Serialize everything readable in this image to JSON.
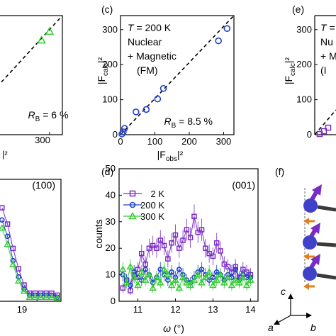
{
  "panel_labels": {
    "c": "(c)",
    "d": "(d)",
    "e": "(e)",
    "f": "(f)"
  },
  "colors": {
    "green": "#33cc33",
    "blue": "#1f3fcc",
    "purple": "#7a2cc4",
    "sphere_blue": "#4040c8",
    "spin_orange": "#e08020",
    "dashed_fit": "#000000"
  },
  "chart_data": [
    {
      "id": "left-partial-top",
      "type": "scatter",
      "xlabel_fragment": "|²",
      "xticks": [
        "300"
      ],
      "annotation": "R_B = 6 %",
      "points": [
        {
          "x": 300,
          "y": 295
        },
        {
          "x": 275,
          "y": 270
        }
      ],
      "marker": "triangle",
      "color": "#33cc33"
    },
    {
      "id": "panel-c",
      "type": "scatter",
      "panel": "(c)",
      "title_lines": [
        "T = 200 K",
        "Nuclear",
        "+ Magnetic",
        "(FM)"
      ],
      "xlabel": "|F_obs|²",
      "ylabel": "|F_calc|²",
      "xlim": [
        0,
        330
      ],
      "ylim": [
        0,
        340
      ],
      "xticks": [
        "0",
        "100",
        "200",
        "300"
      ],
      "yticks": [
        "0",
        "100",
        "200",
        "300"
      ],
      "annotation": "R_B = 8.5 %",
      "marker": "circle",
      "color": "#1f3fcc",
      "points": [
        {
          "x": 4,
          "y": 2
        },
        {
          "x": 8,
          "y": 8
        },
        {
          "x": 12,
          "y": 18
        },
        {
          "x": 45,
          "y": 65
        },
        {
          "x": 75,
          "y": 72
        },
        {
          "x": 108,
          "y": 102
        },
        {
          "x": 125,
          "y": 132
        },
        {
          "x": 285,
          "y": 268
        },
        {
          "x": 310,
          "y": 303
        }
      ],
      "fit_line": [
        [
          0,
          0
        ],
        [
          330,
          340
        ]
      ]
    },
    {
      "id": "panel-e-partial",
      "type": "scatter",
      "panel": "(e)",
      "ylabel": "|F_calc|²",
      "ylim": [
        0,
        340
      ],
      "yticks": [
        "0",
        "100",
        "200",
        "300"
      ],
      "title_fragment": "T =",
      "text_fragments": [
        "Nu",
        "+ M",
        "(I"
      ],
      "marker": "square",
      "color": "#7a2cc4",
      "points": [
        {
          "x": 2,
          "y": 2
        },
        {
          "x": 6,
          "y": 10
        },
        {
          "x": 10,
          "y": 20
        }
      ]
    },
    {
      "id": "left-partial-bottom",
      "type": "line",
      "annotation": "(100)",
      "xticks": [
        "19"
      ],
      "series": [
        {
          "color": "#7a2cc4",
          "marker": "square",
          "values": [
            [
              18.05,
              23
            ],
            [
              18.2,
              19
            ],
            [
              18.35,
              13
            ],
            [
              18.5,
              8
            ],
            [
              18.65,
              4
            ],
            [
              18.8,
              2
            ],
            [
              18.95,
              2
            ],
            [
              19.1,
              2
            ],
            [
              19.25,
              2
            ],
            [
              19.4,
              2
            ],
            [
              19.55,
              1.5
            ]
          ]
        },
        {
          "color": "#1f3fcc",
          "marker": "circle",
          "values": [
            [
              18.05,
              20
            ],
            [
              18.2,
              16
            ],
            [
              18.35,
              10
            ],
            [
              18.5,
              6
            ],
            [
              18.65,
              3
            ],
            [
              18.8,
              1.5
            ],
            [
              18.95,
              1.5
            ],
            [
              19.1,
              1.5
            ],
            [
              19.25,
              1.5
            ],
            [
              19.4,
              1.5
            ],
            [
              19.55,
              1
            ]
          ]
        },
        {
          "color": "#33cc33",
          "marker": "triangle",
          "values": [
            [
              18.05,
              18
            ],
            [
              18.2,
              14
            ],
            [
              18.35,
              9
            ],
            [
              18.5,
              5
            ],
            [
              18.65,
              2.5
            ],
            [
              18.8,
              1
            ],
            [
              18.95,
              1
            ],
            [
              19.1,
              1
            ],
            [
              19.25,
              1
            ],
            [
              19.4,
              1
            ],
            [
              19.55,
              0.8
            ]
          ]
        }
      ],
      "ylim": [
        0,
        30
      ],
      "xlim": [
        17.9,
        19.65
      ]
    },
    {
      "id": "panel-d",
      "type": "line",
      "panel": "(d)",
      "annotation": "(001)",
      "xlabel": "ω (°)",
      "ylabel": "counts",
      "xlim": [
        10.5,
        14.2
      ],
      "ylim": [
        0,
        50
      ],
      "xticks": [
        "11",
        "12",
        "13",
        "14"
      ],
      "yticks": [
        "0",
        "10",
        "20",
        "30",
        "40",
        "50"
      ],
      "series": [
        {
          "name": "2 K",
          "color": "#7a2cc4",
          "marker": "square",
          "x": [
            10.6,
            10.7,
            10.8,
            10.9,
            11.0,
            11.1,
            11.2,
            11.3,
            11.4,
            11.5,
            11.6,
            11.7,
            11.8,
            11.9,
            12.0,
            12.1,
            12.2,
            12.3,
            12.4,
            12.5,
            12.6,
            12.7,
            12.8,
            12.9,
            13.0,
            13.1,
            13.2,
            13.3,
            13.4,
            13.5,
            13.6,
            13.7,
            13.8,
            13.9,
            14.0
          ],
          "y": [
            5,
            8,
            4,
            10,
            12,
            18,
            14,
            20,
            21,
            20,
            23,
            21,
            16,
            22,
            25,
            20,
            23,
            27,
            24,
            32,
            26,
            27,
            20,
            18,
            17,
            22,
            19,
            14,
            13,
            11,
            13,
            9,
            12,
            11,
            10
          ]
        },
        {
          "name": "200 K",
          "color": "#1f3fcc",
          "marker": "circle",
          "x": [
            10.6,
            10.7,
            10.8,
            10.9,
            11.0,
            11.1,
            11.2,
            11.3,
            11.4,
            11.5,
            11.6,
            11.7,
            11.8,
            11.9,
            12.0,
            12.1,
            12.2,
            12.3,
            12.4,
            12.5,
            12.6,
            12.7,
            12.8,
            12.9,
            13.0,
            13.1,
            13.2,
            13.3,
            13.4,
            13.5,
            13.6,
            13.7,
            13.8,
            13.9,
            14.0
          ],
          "y": [
            10,
            8,
            6,
            11,
            9,
            8,
            12,
            10,
            7,
            9,
            12,
            10,
            8,
            11,
            9,
            12,
            10,
            8,
            7,
            9,
            11,
            12,
            10,
            8,
            9,
            11,
            10,
            8,
            10,
            9,
            12,
            8,
            10,
            9,
            9
          ]
        },
        {
          "name": "300 K",
          "color": "#33cc33",
          "marker": "triangle",
          "x": [
            10.6,
            10.7,
            10.8,
            10.9,
            11.0,
            11.1,
            11.2,
            11.3,
            11.4,
            11.5,
            11.6,
            11.7,
            11.8,
            11.9,
            12.0,
            12.1,
            12.2,
            12.3,
            12.4,
            12.5,
            12.6,
            12.7,
            12.8,
            12.9,
            13.0,
            13.1,
            13.2,
            13.3,
            13.4,
            13.5,
            13.6,
            13.7,
            13.8,
            13.9,
            14.0
          ],
          "y": [
            12,
            7,
            13,
            9,
            6,
            11,
            8,
            10,
            5,
            9,
            7,
            12,
            10,
            6,
            8,
            5,
            9,
            7,
            6,
            8,
            10,
            7,
            9,
            11,
            6,
            8,
            10,
            7,
            9,
            6,
            8,
            7,
            9,
            6,
            8
          ]
        }
      ],
      "legend_position": "top-left"
    }
  ],
  "panel_f": {
    "axis_labels": {
      "c": "c",
      "a": "a",
      "b": "b"
    }
  }
}
